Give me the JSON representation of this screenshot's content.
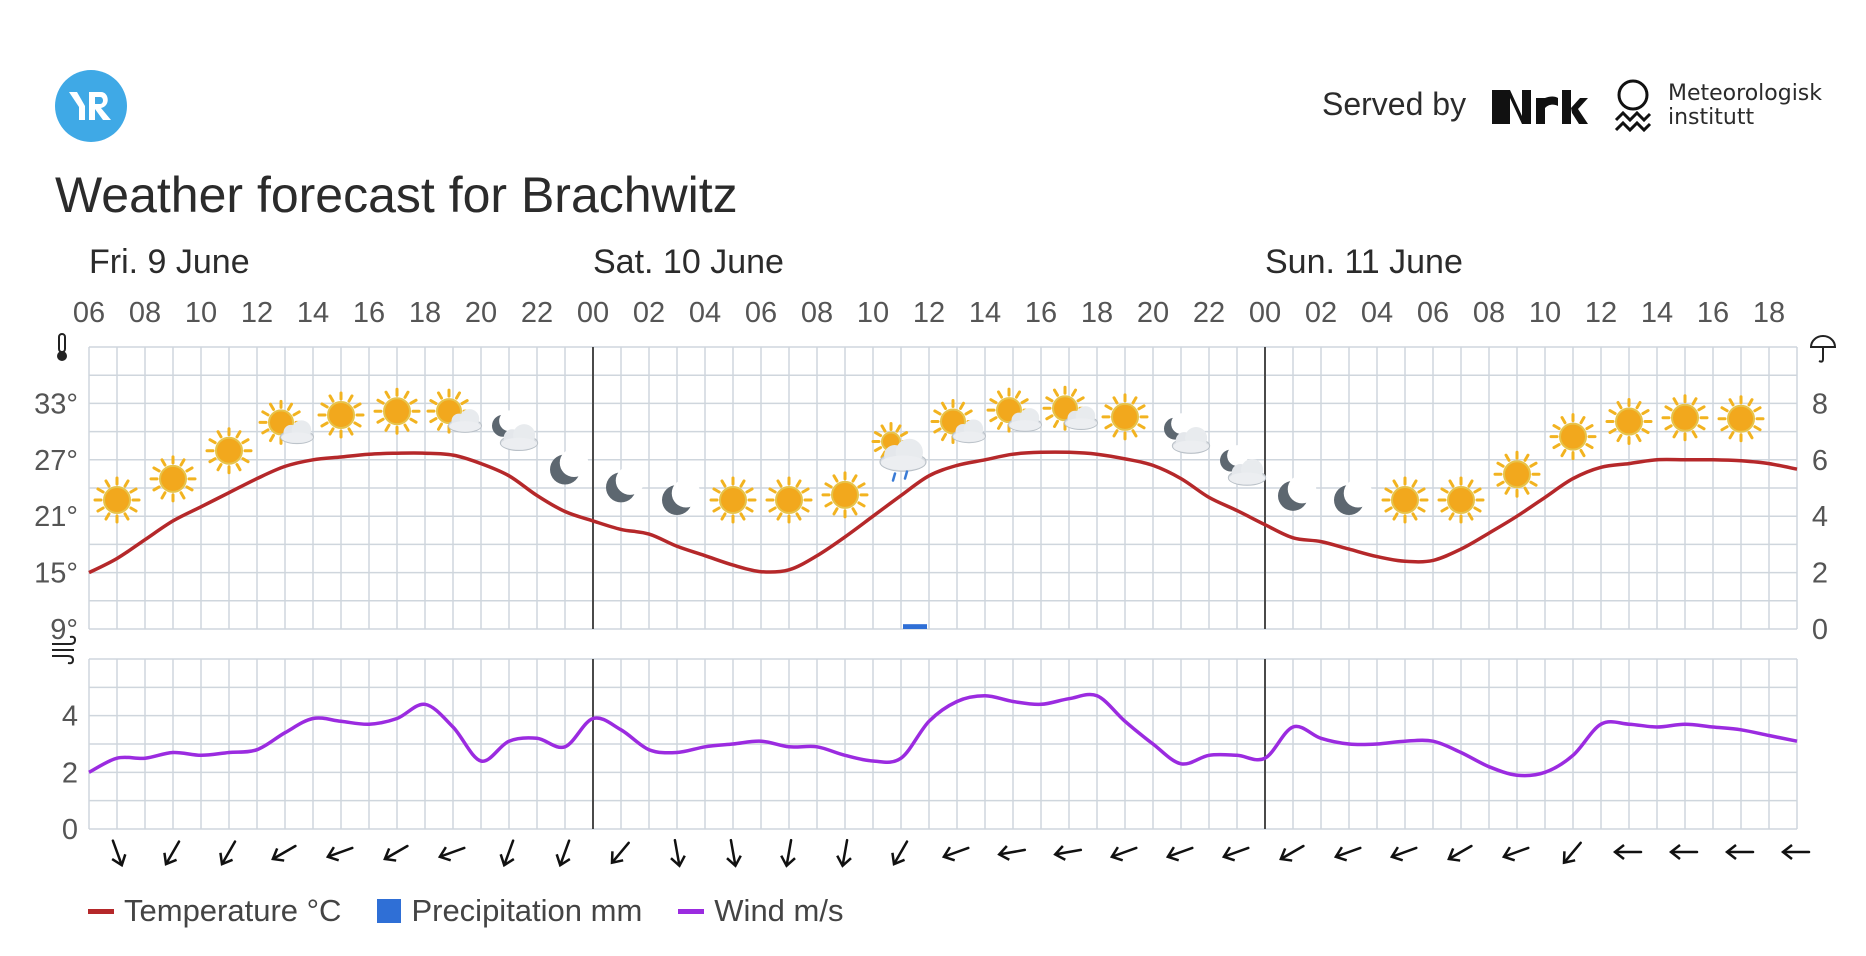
{
  "header": {
    "logo_text": "YR",
    "served_by": "Served by",
    "partner_nrk": "NRK",
    "partner_met_line1": "Meteorologisk",
    "partner_met_line2": "institutt",
    "title": "Weather forecast for Brachwitz"
  },
  "colors": {
    "temperature": "#b5282a",
    "precipitation": "#2f6fd6",
    "wind": "#9b2be0",
    "grid": "#cfd6dd",
    "day_divider": "#4a4a4a",
    "logo": "#3fa9e6"
  },
  "chart_data": {
    "type": "line",
    "days": [
      {
        "label": "Fri. 9 June",
        "start_hour": 6
      },
      {
        "label": "Sat. 10 June",
        "start_hour": 24
      },
      {
        "label": "Sun. 11 June",
        "start_hour": 48
      }
    ],
    "x_start_hour": 6,
    "x_end_hour": 67,
    "x_tick_labels": [
      "06",
      "08",
      "10",
      "12",
      "14",
      "16",
      "18",
      "20",
      "22",
      "00",
      "02",
      "04",
      "06",
      "08",
      "10",
      "12",
      "14",
      "16",
      "18",
      "20",
      "22",
      "00",
      "02",
      "04",
      "06",
      "08",
      "10",
      "12",
      "14",
      "16",
      "18"
    ],
    "temperature_axis": {
      "unit": "°",
      "ticks": [
        9,
        15,
        21,
        27,
        33
      ],
      "labels": [
        "9°",
        "15°",
        "21°",
        "27°",
        "33°"
      ],
      "ylim": [
        9,
        39
      ]
    },
    "precipitation_axis": {
      "ticks": [
        0,
        2,
        4,
        6,
        8
      ],
      "labels": [
        "0",
        "2",
        "4",
        "6",
        "8"
      ],
      "ylim": [
        0,
        10
      ]
    },
    "wind_axis": {
      "ticks": [
        0,
        2,
        4
      ],
      "labels": [
        "0",
        "2",
        "4"
      ],
      "ylim": [
        0,
        6
      ]
    },
    "series": [
      {
        "name": "Temperature °C",
        "hours": [
          6,
          7,
          8,
          9,
          10,
          11,
          12,
          13,
          14,
          15,
          16,
          17,
          18,
          19,
          20,
          21,
          22,
          23,
          24,
          25,
          26,
          27,
          28,
          29,
          30,
          31,
          32,
          33,
          34,
          35,
          36,
          37,
          38,
          39,
          40,
          41,
          42,
          43,
          44,
          45,
          46,
          47,
          48,
          49,
          50,
          51,
          52,
          53,
          54,
          55,
          56,
          57,
          58,
          59,
          60,
          61,
          62,
          63,
          64,
          65,
          66,
          67
        ],
        "values": [
          15,
          16.5,
          18.5,
          20.5,
          22,
          23.5,
          25,
          26.3,
          27,
          27.3,
          27.6,
          27.7,
          27.7,
          27.5,
          26.6,
          25.3,
          23.2,
          21.5,
          20.5,
          19.6,
          19.1,
          17.8,
          16.8,
          15.8,
          15.1,
          15.3,
          16.8,
          18.8,
          21,
          23.2,
          25.3,
          26.4,
          27,
          27.6,
          27.8,
          27.8,
          27.6,
          27.1,
          26.4,
          25,
          23,
          21.6,
          20.1,
          18.7,
          18.3,
          17.5,
          16.7,
          16.2,
          16.3,
          17.5,
          19.2,
          21,
          23,
          25,
          26.2,
          26.6,
          27,
          27,
          27,
          26.9,
          26.6,
          26
        ]
      },
      {
        "name": "Precipitation mm",
        "bars": [
          {
            "hour": 35,
            "value": 0.1
          }
        ]
      },
      {
        "name": "Wind m/s",
        "hours": [
          6,
          7,
          8,
          9,
          10,
          11,
          12,
          13,
          14,
          15,
          16,
          17,
          18,
          19,
          20,
          21,
          22,
          23,
          24,
          25,
          26,
          27,
          28,
          29,
          30,
          31,
          32,
          33,
          34,
          35,
          36,
          37,
          38,
          39,
          40,
          41,
          42,
          43,
          44,
          45,
          46,
          47,
          48,
          49,
          50,
          51,
          52,
          53,
          54,
          55,
          56,
          57,
          58,
          59,
          60,
          61,
          62,
          63,
          64,
          65,
          66,
          67
        ],
        "values": [
          2,
          2.5,
          2.5,
          2.7,
          2.6,
          2.7,
          2.8,
          3.4,
          3.9,
          3.8,
          3.7,
          3.9,
          4.4,
          3.6,
          2.4,
          3.1,
          3.2,
          2.9,
          3.9,
          3.5,
          2.8,
          2.7,
          2.9,
          3,
          3.1,
          2.9,
          2.9,
          2.6,
          2.4,
          2.5,
          3.8,
          4.5,
          4.7,
          4.5,
          4.4,
          4.6,
          4.7,
          3.8,
          3,
          2.3,
          2.6,
          2.6,
          2.5,
          3.6,
          3.2,
          3,
          3,
          3.1,
          3.1,
          2.7,
          2.2,
          1.9,
          2,
          2.6,
          3.7,
          3.7,
          3.6,
          3.7,
          3.6,
          3.5,
          3.3,
          3.1
        ]
      }
    ],
    "weather_icons": [
      {
        "hour": 7,
        "icon": "sun-icon"
      },
      {
        "hour": 9,
        "icon": "sun-icon"
      },
      {
        "hour": 11,
        "icon": "sun-icon"
      },
      {
        "hour": 13,
        "icon": "partly-cloudy-day-icon"
      },
      {
        "hour": 15,
        "icon": "sun-icon"
      },
      {
        "hour": 17,
        "icon": "sun-icon"
      },
      {
        "hour": 19,
        "icon": "partly-cloudy-day-icon"
      },
      {
        "hour": 21,
        "icon": "partly-cloudy-night-icon"
      },
      {
        "hour": 23,
        "icon": "moon-icon"
      },
      {
        "hour": 25,
        "icon": "moon-icon"
      },
      {
        "hour": 27,
        "icon": "moon-icon"
      },
      {
        "hour": 29,
        "icon": "sun-icon"
      },
      {
        "hour": 31,
        "icon": "sun-icon"
      },
      {
        "hour": 33,
        "icon": "sun-icon"
      },
      {
        "hour": 35,
        "icon": "light-rain-icon"
      },
      {
        "hour": 37,
        "icon": "partly-cloudy-day-icon"
      },
      {
        "hour": 39,
        "icon": "partly-cloudy-day-icon"
      },
      {
        "hour": 41,
        "icon": "partly-cloudy-day-icon"
      },
      {
        "hour": 43,
        "icon": "sun-icon"
      },
      {
        "hour": 45,
        "icon": "partly-cloudy-night-icon"
      },
      {
        "hour": 47,
        "icon": "partly-cloudy-night-icon"
      },
      {
        "hour": 49,
        "icon": "moon-icon"
      },
      {
        "hour": 51,
        "icon": "moon-icon"
      },
      {
        "hour": 53,
        "icon": "sun-icon"
      },
      {
        "hour": 55,
        "icon": "sun-icon"
      },
      {
        "hour": 57,
        "icon": "sun-icon"
      },
      {
        "hour": 59,
        "icon": "sun-icon"
      },
      {
        "hour": 61,
        "icon": "sun-icon"
      },
      {
        "hour": 63,
        "icon": "sun-icon"
      },
      {
        "hour": 65,
        "icon": "sun-icon"
      }
    ],
    "wind_directions_deg": [
      340,
      30,
      30,
      60,
      70,
      60,
      70,
      20,
      20,
      40,
      350,
      350,
      10,
      10,
      30,
      70,
      80,
      80,
      70,
      70,
      70,
      60,
      70,
      70,
      60,
      70,
      40,
      90,
      90,
      90,
      90
    ],
    "legend": [
      "Temperature °C",
      "Precipitation mm",
      "Wind m/s"
    ],
    "grid": true,
    "legend_position": "bottom-left"
  }
}
